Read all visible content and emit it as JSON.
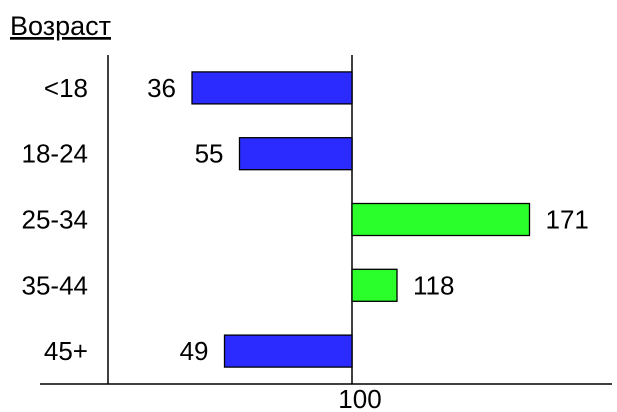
{
  "chart_data": {
    "type": "bar",
    "orientation": "horizontal",
    "title": "Возраст",
    "categories": [
      "<18",
      "18-24",
      "25-34",
      "35-44",
      "45+"
    ],
    "values": [
      36,
      55,
      171,
      118,
      49
    ],
    "baseline": 100,
    "x_ticks": [
      "100"
    ],
    "colors": {
      "below_baseline": "#2b2bff",
      "above_baseline": "#2bff2b"
    },
    "grid": false,
    "legend": "none"
  }
}
